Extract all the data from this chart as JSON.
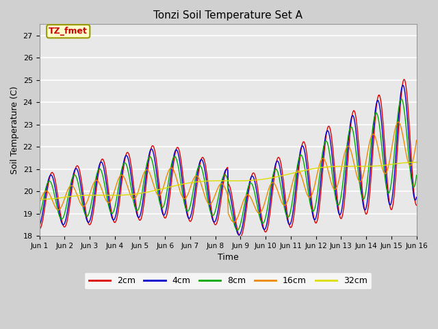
{
  "title": "Tonzi Soil Temperature Set A",
  "xlabel": "Time",
  "ylabel": "Soil Temperature (C)",
  "ylim": [
    18.0,
    27.5
  ],
  "yticks": [
    18.0,
    19.0,
    20.0,
    21.0,
    22.0,
    23.0,
    24.0,
    25.0,
    26.0,
    27.0
  ],
  "xtick_labels": [
    "Jun 1",
    "Jun 2",
    "Jun 3",
    "Jun 4",
    "Jun 5",
    "Jun 6",
    "Jun 7",
    "Jun 8",
    "Jun 9",
    "Jun 10",
    "Jun 11",
    "Jun 12",
    "Jun 13",
    "Jun 14",
    "Jun 15",
    "Jun 16"
  ],
  "colors": {
    "2cm": "#dd0000",
    "4cm": "#0000cc",
    "8cm": "#00aa00",
    "16cm": "#ee8800",
    "32cm": "#dddd00"
  },
  "annotation_text": "TZ_fmet",
  "annotation_color": "#cc0000",
  "annotation_bg": "#ffffcc",
  "annotation_border": "#999900",
  "fig_bg": "#d0d0d0",
  "plot_bg": "#e8e8e8",
  "grid_color": "#ffffff",
  "legend_entries": [
    "2cm",
    "4cm",
    "8cm",
    "16cm",
    "32cm"
  ]
}
